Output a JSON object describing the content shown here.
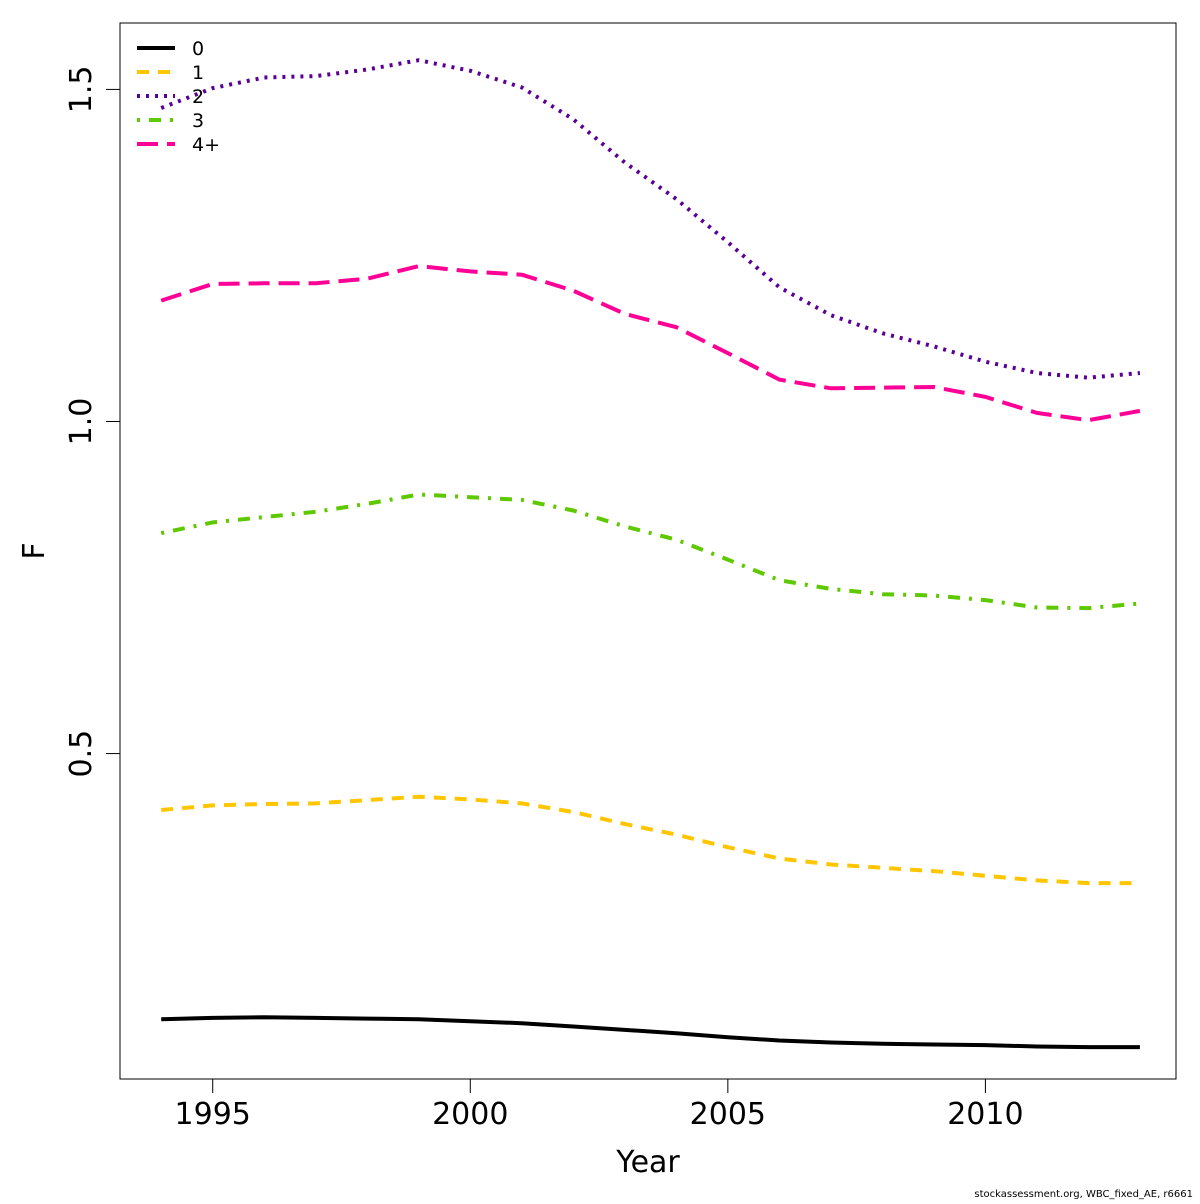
{
  "chart_data": {
    "type": "line",
    "title": "",
    "xlabel": "Year",
    "ylabel": "F",
    "xlim": [
      1993.2,
      2013.7
    ],
    "ylim": [
      0.01,
      1.6
    ],
    "x_ticks": [
      1995,
      2000,
      2005,
      2010
    ],
    "x_tick_labels": [
      "1995",
      "2000",
      "2005",
      "2010"
    ],
    "y_ticks": [
      0.5,
      1.0,
      1.5
    ],
    "y_tick_labels": [
      "0.5",
      "1.0",
      "1.5"
    ],
    "grid": false,
    "legend_position": "top-left",
    "x": [
      1994,
      1995,
      1996,
      1997,
      1998,
      1999,
      2000,
      2001,
      2002,
      2003,
      2004,
      2005,
      2006,
      2007,
      2008,
      2009,
      2010,
      2011,
      2012,
      2013
    ],
    "series": [
      {
        "name": "0",
        "color": "#000000",
        "dash": "solid",
        "values": [
          0.1,
          0.102,
          0.103,
          0.102,
          0.101,
          0.1,
          0.097,
          0.094,
          0.089,
          0.084,
          0.079,
          0.073,
          0.068,
          0.065,
          0.063,
          0.062,
          0.061,
          0.059,
          0.058,
          0.058
        ]
      },
      {
        "name": "1",
        "color": "#FFC600",
        "dash": "dashed",
        "values": [
          0.415,
          0.422,
          0.424,
          0.425,
          0.43,
          0.435,
          0.431,
          0.425,
          0.412,
          0.394,
          0.378,
          0.359,
          0.342,
          0.333,
          0.328,
          0.323,
          0.316,
          0.309,
          0.305,
          0.305
        ]
      },
      {
        "name": "2",
        "color": "#5A0096",
        "dash": "dotted",
        "values": [
          1.472,
          1.502,
          1.518,
          1.52,
          1.53,
          1.544,
          1.528,
          1.503,
          1.455,
          1.39,
          1.335,
          1.27,
          1.202,
          1.16,
          1.133,
          1.113,
          1.09,
          1.073,
          1.066,
          1.073
        ]
      },
      {
        "name": "3",
        "color": "#5EC800",
        "dash": "dashdot",
        "values": [
          0.832,
          0.848,
          0.856,
          0.864,
          0.876,
          0.89,
          0.886,
          0.882,
          0.866,
          0.842,
          0.822,
          0.792,
          0.761,
          0.748,
          0.74,
          0.738,
          0.731,
          0.72,
          0.719,
          0.726
        ]
      },
      {
        "name": "4+",
        "color": "#FF0096",
        "dash": "longdash",
        "values": [
          1.182,
          1.207,
          1.208,
          1.208,
          1.215,
          1.234,
          1.226,
          1.221,
          1.197,
          1.162,
          1.142,
          1.103,
          1.063,
          1.05,
          1.051,
          1.052,
          1.037,
          1.013,
          1.002,
          1.016
        ]
      }
    ]
  },
  "footnote": "stockassessment.org, WBC_fixed_AE, r6661"
}
